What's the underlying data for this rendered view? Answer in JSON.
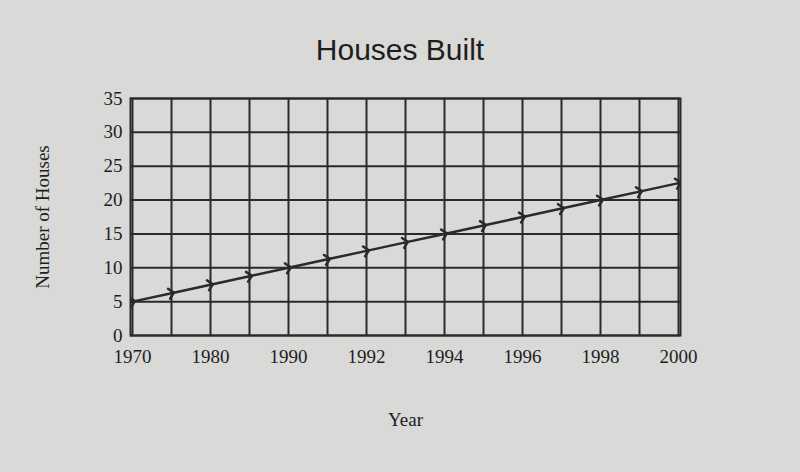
{
  "chart_data": {
    "type": "line",
    "title": "Houses Built",
    "x_label": "Year",
    "y_label": "Number of Houses",
    "categories": [
      "1970",
      null,
      "1980",
      null,
      "1990",
      null,
      "1992",
      null,
      "1994",
      null,
      "1996",
      null,
      "1998",
      null,
      "2000"
    ],
    "values": [
      5,
      6.25,
      7.5,
      8.75,
      10,
      11.25,
      12.5,
      13.75,
      15,
      16.25,
      17.5,
      18.75,
      20,
      21.25,
      22.5
    ],
    "color": "#2a2a2a",
    "marker": "arrow",
    "ylim": [
      0,
      35
    ],
    "yticks": [
      0,
      5,
      10,
      15,
      20,
      25,
      30,
      35
    ],
    "grid": true
  }
}
